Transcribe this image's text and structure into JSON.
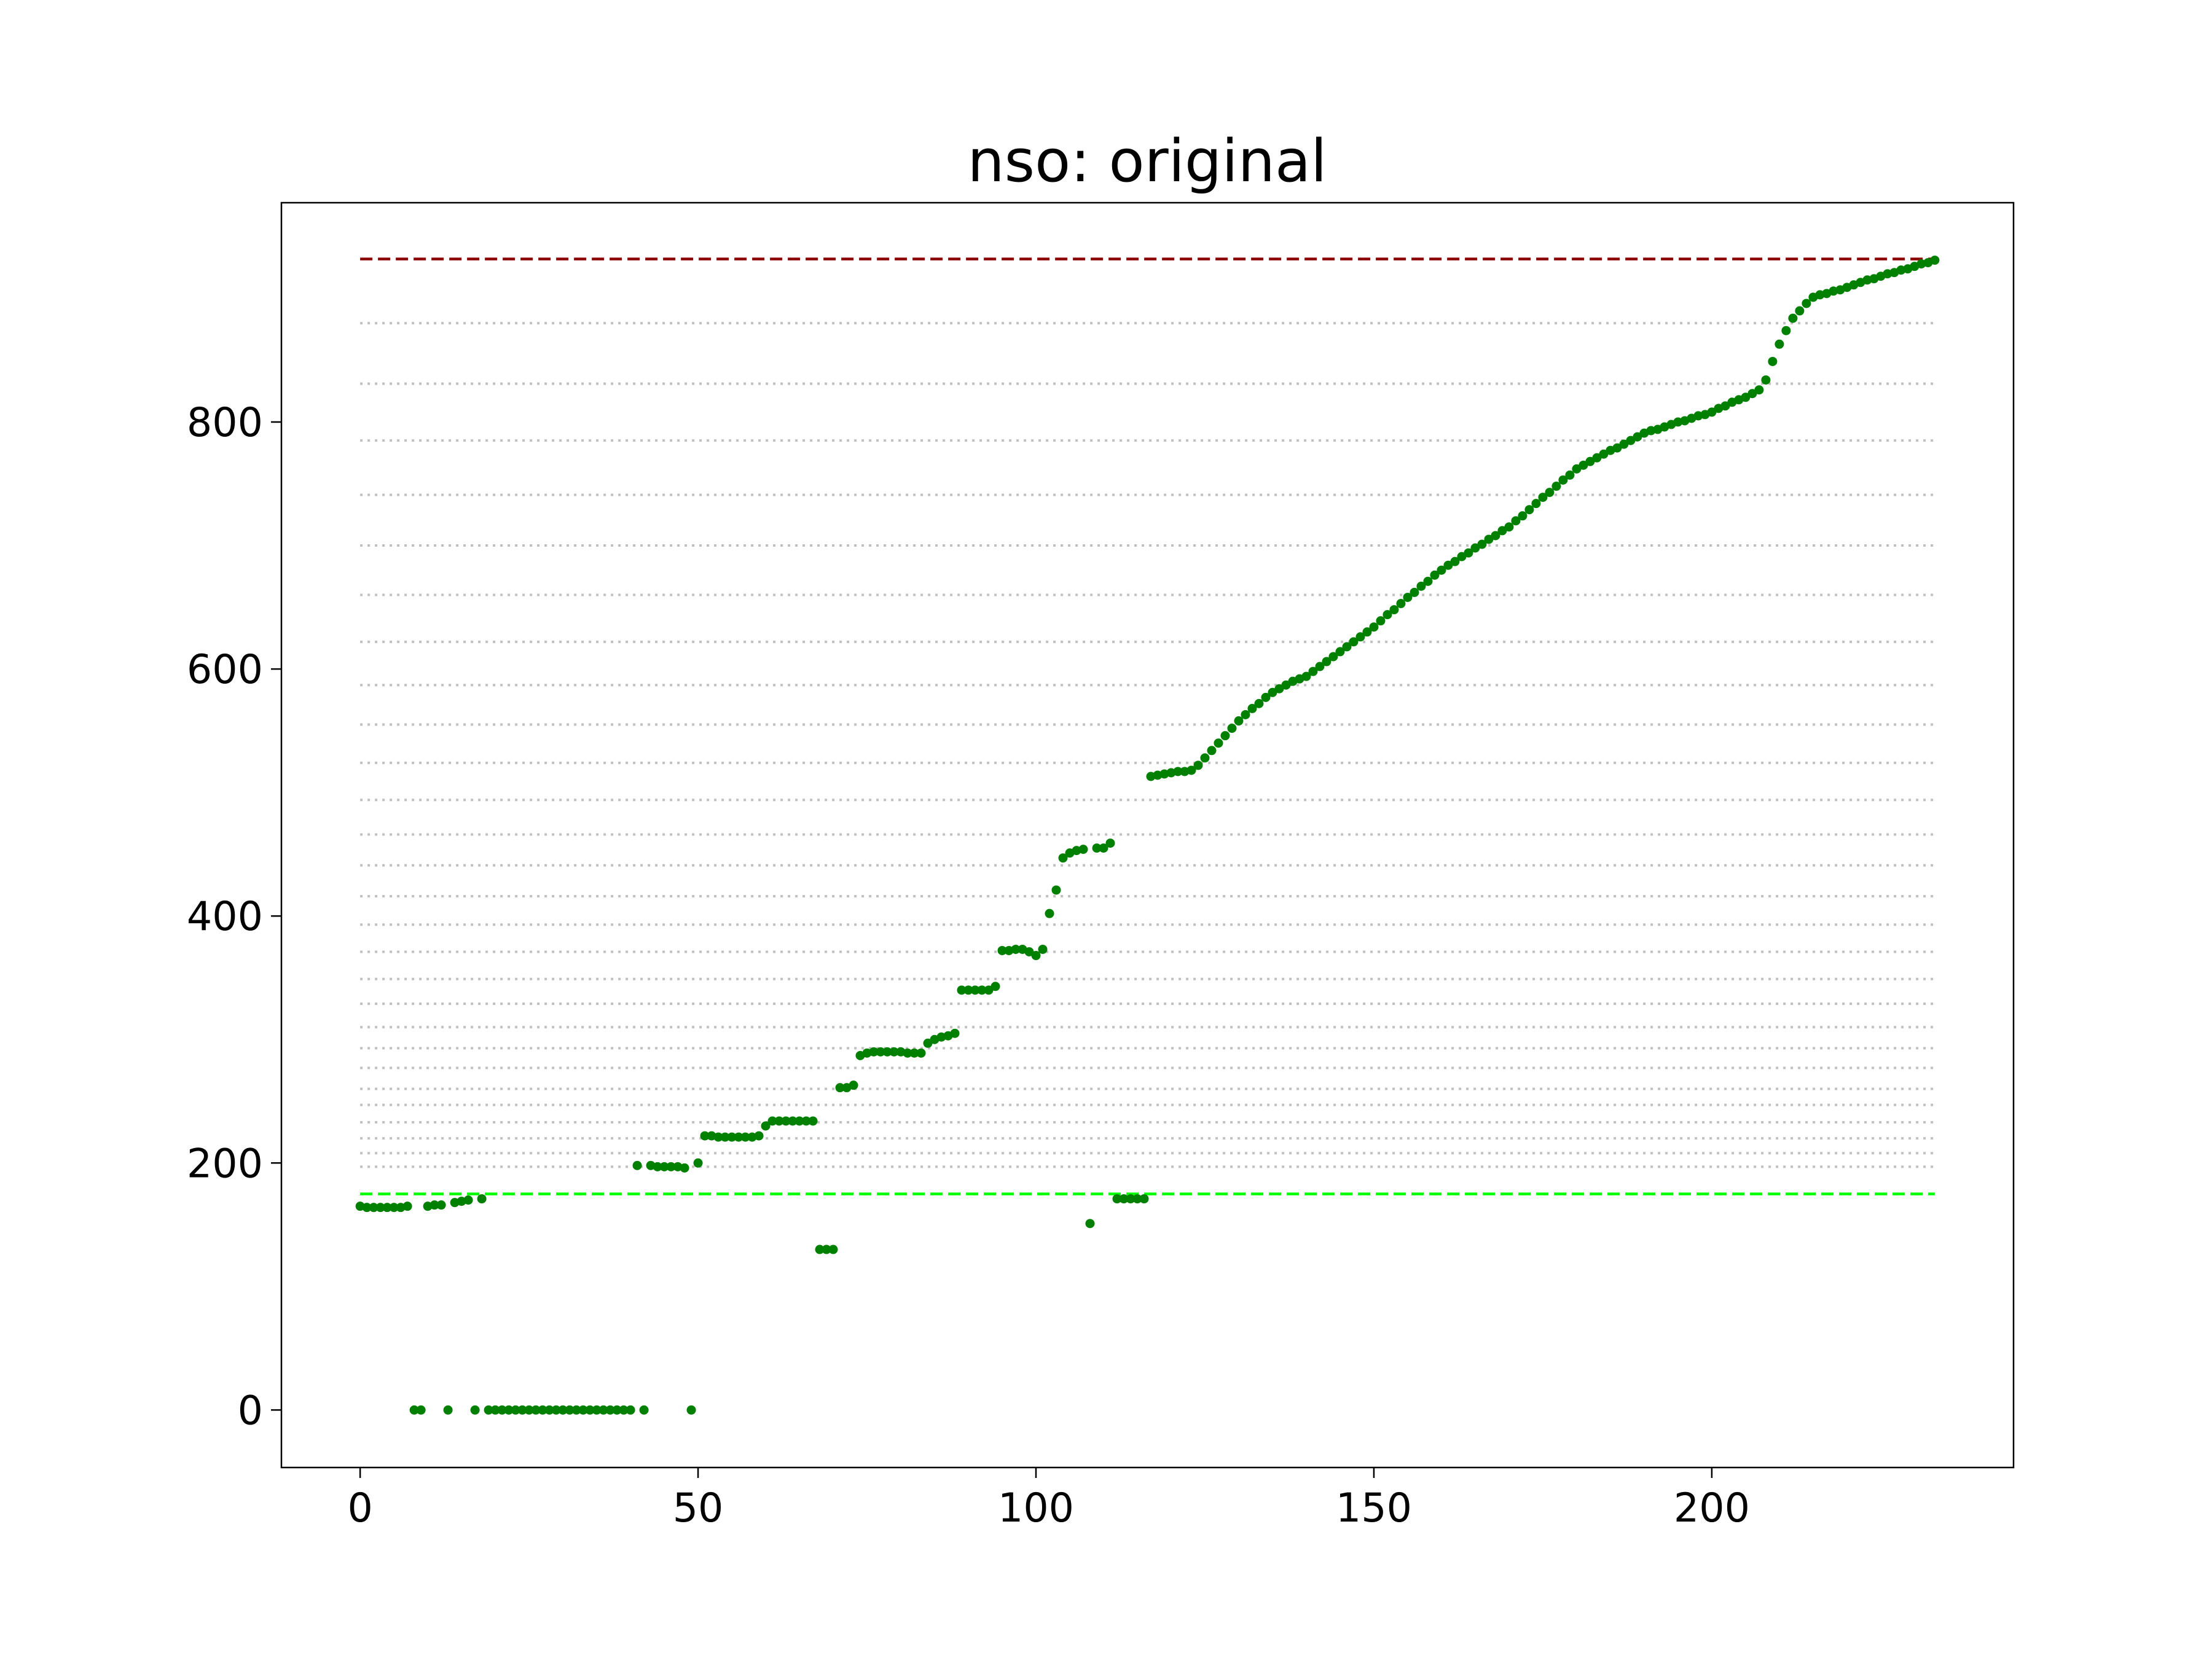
{
  "chart_data": {
    "type": "scatter",
    "title": "nso: original",
    "x": [
      0,
      1,
      2,
      3,
      4,
      5,
      6,
      7,
      8,
      9,
      10,
      11,
      12,
      13,
      14,
      15,
      16,
      17,
      18,
      19,
      20,
      21,
      22,
      23,
      24,
      25,
      26,
      27,
      28,
      29,
      30,
      31,
      32,
      33,
      34,
      35,
      36,
      37,
      38,
      39,
      40,
      41,
      42,
      43,
      44,
      45,
      46,
      47,
      48,
      49,
      50,
      51,
      52,
      53,
      54,
      55,
      56,
      57,
      58,
      59,
      60,
      61,
      62,
      63,
      64,
      65,
      66,
      67,
      68,
      69,
      70,
      71,
      72,
      73,
      74,
      75,
      76,
      77,
      78,
      79,
      80,
      81,
      82,
      83,
      84,
      85,
      86,
      87,
      88,
      89,
      90,
      91,
      92,
      93,
      94,
      95,
      96,
      97,
      98,
      99,
      100,
      101,
      102,
      103,
      104,
      105,
      106,
      107,
      108,
      109,
      110,
      111,
      112,
      113,
      114,
      115,
      116,
      117,
      118,
      119,
      120,
      121,
      122,
      123,
      124,
      125,
      126,
      127,
      128,
      129,
      130,
      131,
      132,
      133,
      134,
      135,
      136,
      137,
      138,
      139,
      140,
      141,
      142,
      143,
      144,
      145,
      146,
      147,
      148,
      149,
      150,
      151,
      152,
      153,
      154,
      155,
      156,
      157,
      158,
      159,
      160,
      161,
      162,
      163,
      164,
      165,
      166,
      167,
      168,
      169,
      170,
      171,
      172,
      173,
      174,
      175,
      176,
      177,
      178,
      179,
      180,
      181,
      182,
      183,
      184,
      185,
      186,
      187,
      188,
      189,
      190,
      191,
      192,
      193,
      194,
      195,
      196,
      197,
      198,
      199,
      200,
      201,
      202,
      203,
      204,
      205,
      206,
      207,
      208,
      209,
      210,
      211,
      212,
      213,
      214,
      215,
      216,
      217,
      218,
      219,
      220,
      221,
      222,
      223,
      224,
      225,
      226,
      227,
      228,
      229,
      230,
      231,
      232,
      233
    ],
    "values": [
      165,
      164,
      164,
      164,
      164,
      164,
      164,
      165,
      0,
      0,
      165,
      166,
      166,
      0,
      168,
      169,
      170,
      0,
      171,
      0,
      0,
      0,
      0,
      0,
      0,
      0,
      0,
      0,
      0,
      0,
      0,
      0,
      0,
      0,
      0,
      0,
      0,
      0,
      0,
      0,
      0,
      198,
      0,
      198,
      197,
      197,
      197,
      197,
      196,
      0,
      200,
      222,
      222,
      221,
      221,
      221,
      221,
      221,
      221,
      222,
      230,
      234,
      234,
      234,
      234,
      234,
      234,
      234,
      130,
      130,
      130,
      261,
      261,
      263,
      287,
      289,
      290,
      290,
      290,
      290,
      290,
      289,
      289,
      289,
      297,
      300,
      302,
      303,
      305,
      340,
      340,
      340,
      340,
      340,
      343,
      372,
      372,
      373,
      373,
      371,
      368,
      373,
      402,
      421,
      447,
      451,
      453,
      454,
      151,
      455,
      455,
      459,
      171,
      171,
      171,
      171,
      171,
      513,
      514,
      515,
      516,
      517,
      517,
      518,
      522,
      528,
      534,
      540,
      546,
      552,
      558,
      563,
      568,
      572,
      577,
      581,
      584,
      587,
      590,
      592,
      594,
      598,
      602,
      606,
      610,
      614,
      618,
      622,
      626,
      630,
      634,
      639,
      644,
      648,
      653,
      658,
      662,
      667,
      671,
      676,
      680,
      684,
      687,
      691,
      694,
      698,
      701,
      705,
      708,
      712,
      715,
      720,
      724,
      729,
      734,
      739,
      743,
      748,
      753,
      757,
      762,
      765,
      768,
      771,
      774,
      777,
      779,
      782,
      785,
      788,
      791,
      793,
      794,
      796,
      798,
      800,
      801,
      803,
      805,
      806,
      808,
      811,
      813,
      816,
      818,
      820,
      823,
      826,
      834,
      849,
      863,
      874,
      884,
      890,
      896,
      901,
      903,
      904,
      906,
      907,
      909,
      911,
      913,
      915,
      916,
      918,
      920,
      921,
      923,
      924,
      926,
      928,
      929,
      931
    ],
    "color": "#008000",
    "xlim": [
      -11.65,
      244.65
    ],
    "ylim": [
      -46.55,
      977.55
    ],
    "xticks": [
      0,
      50,
      100,
      150,
      200
    ],
    "yticks": [
      0,
      200,
      400,
      600,
      800
    ],
    "reference_lines": [
      {
        "y": 932,
        "color": "#8b0000",
        "style": "dashed"
      },
      {
        "y": 175,
        "color": "#00ff00",
        "style": "dashed"
      },
      {
        "y": 880,
        "color": "#c0c0c0",
        "style": "dotted"
      },
      {
        "y": 831,
        "color": "#c0c0c0",
        "style": "dotted"
      },
      {
        "y": 785,
        "color": "#c0c0c0",
        "style": "dotted"
      },
      {
        "y": 741,
        "color": "#c0c0c0",
        "style": "dotted"
      },
      {
        "y": 700,
        "color": "#c0c0c0",
        "style": "dotted"
      },
      {
        "y": 660,
        "color": "#c0c0c0",
        "style": "dotted"
      },
      {
        "y": 622,
        "color": "#c0c0c0",
        "style": "dotted"
      },
      {
        "y": 587,
        "color": "#c0c0c0",
        "style": "dotted"
      },
      {
        "y": 555,
        "color": "#c0c0c0",
        "style": "dotted"
      },
      {
        "y": 524,
        "color": "#c0c0c0",
        "style": "dotted"
      },
      {
        "y": 494,
        "color": "#c0c0c0",
        "style": "dotted"
      },
      {
        "y": 466,
        "color": "#c0c0c0",
        "style": "dotted"
      },
      {
        "y": 441,
        "color": "#c0c0c0",
        "style": "dotted"
      },
      {
        "y": 416,
        "color": "#c0c0c0",
        "style": "dotted"
      },
      {
        "y": 393,
        "color": "#c0c0c0",
        "style": "dotted"
      },
      {
        "y": 371,
        "color": "#c0c0c0",
        "style": "dotted"
      },
      {
        "y": 349,
        "color": "#c0c0c0",
        "style": "dotted"
      },
      {
        "y": 329,
        "color": "#c0c0c0",
        "style": "dotted"
      },
      {
        "y": 310,
        "color": "#c0c0c0",
        "style": "dotted"
      },
      {
        "y": 293,
        "color": "#c0c0c0",
        "style": "dotted"
      },
      {
        "y": 277,
        "color": "#c0c0c0",
        "style": "dotted"
      },
      {
        "y": 260,
        "color": "#c0c0c0",
        "style": "dotted"
      },
      {
        "y": 247,
        "color": "#c0c0c0",
        "style": "dotted"
      },
      {
        "y": 233,
        "color": "#c0c0c0",
        "style": "dotted"
      },
      {
        "y": 220,
        "color": "#c0c0c0",
        "style": "dotted"
      },
      {
        "y": 208,
        "color": "#c0c0c0",
        "style": "dotted"
      },
      {
        "y": 197,
        "color": "#c0c0c0",
        "style": "dotted"
      }
    ]
  }
}
